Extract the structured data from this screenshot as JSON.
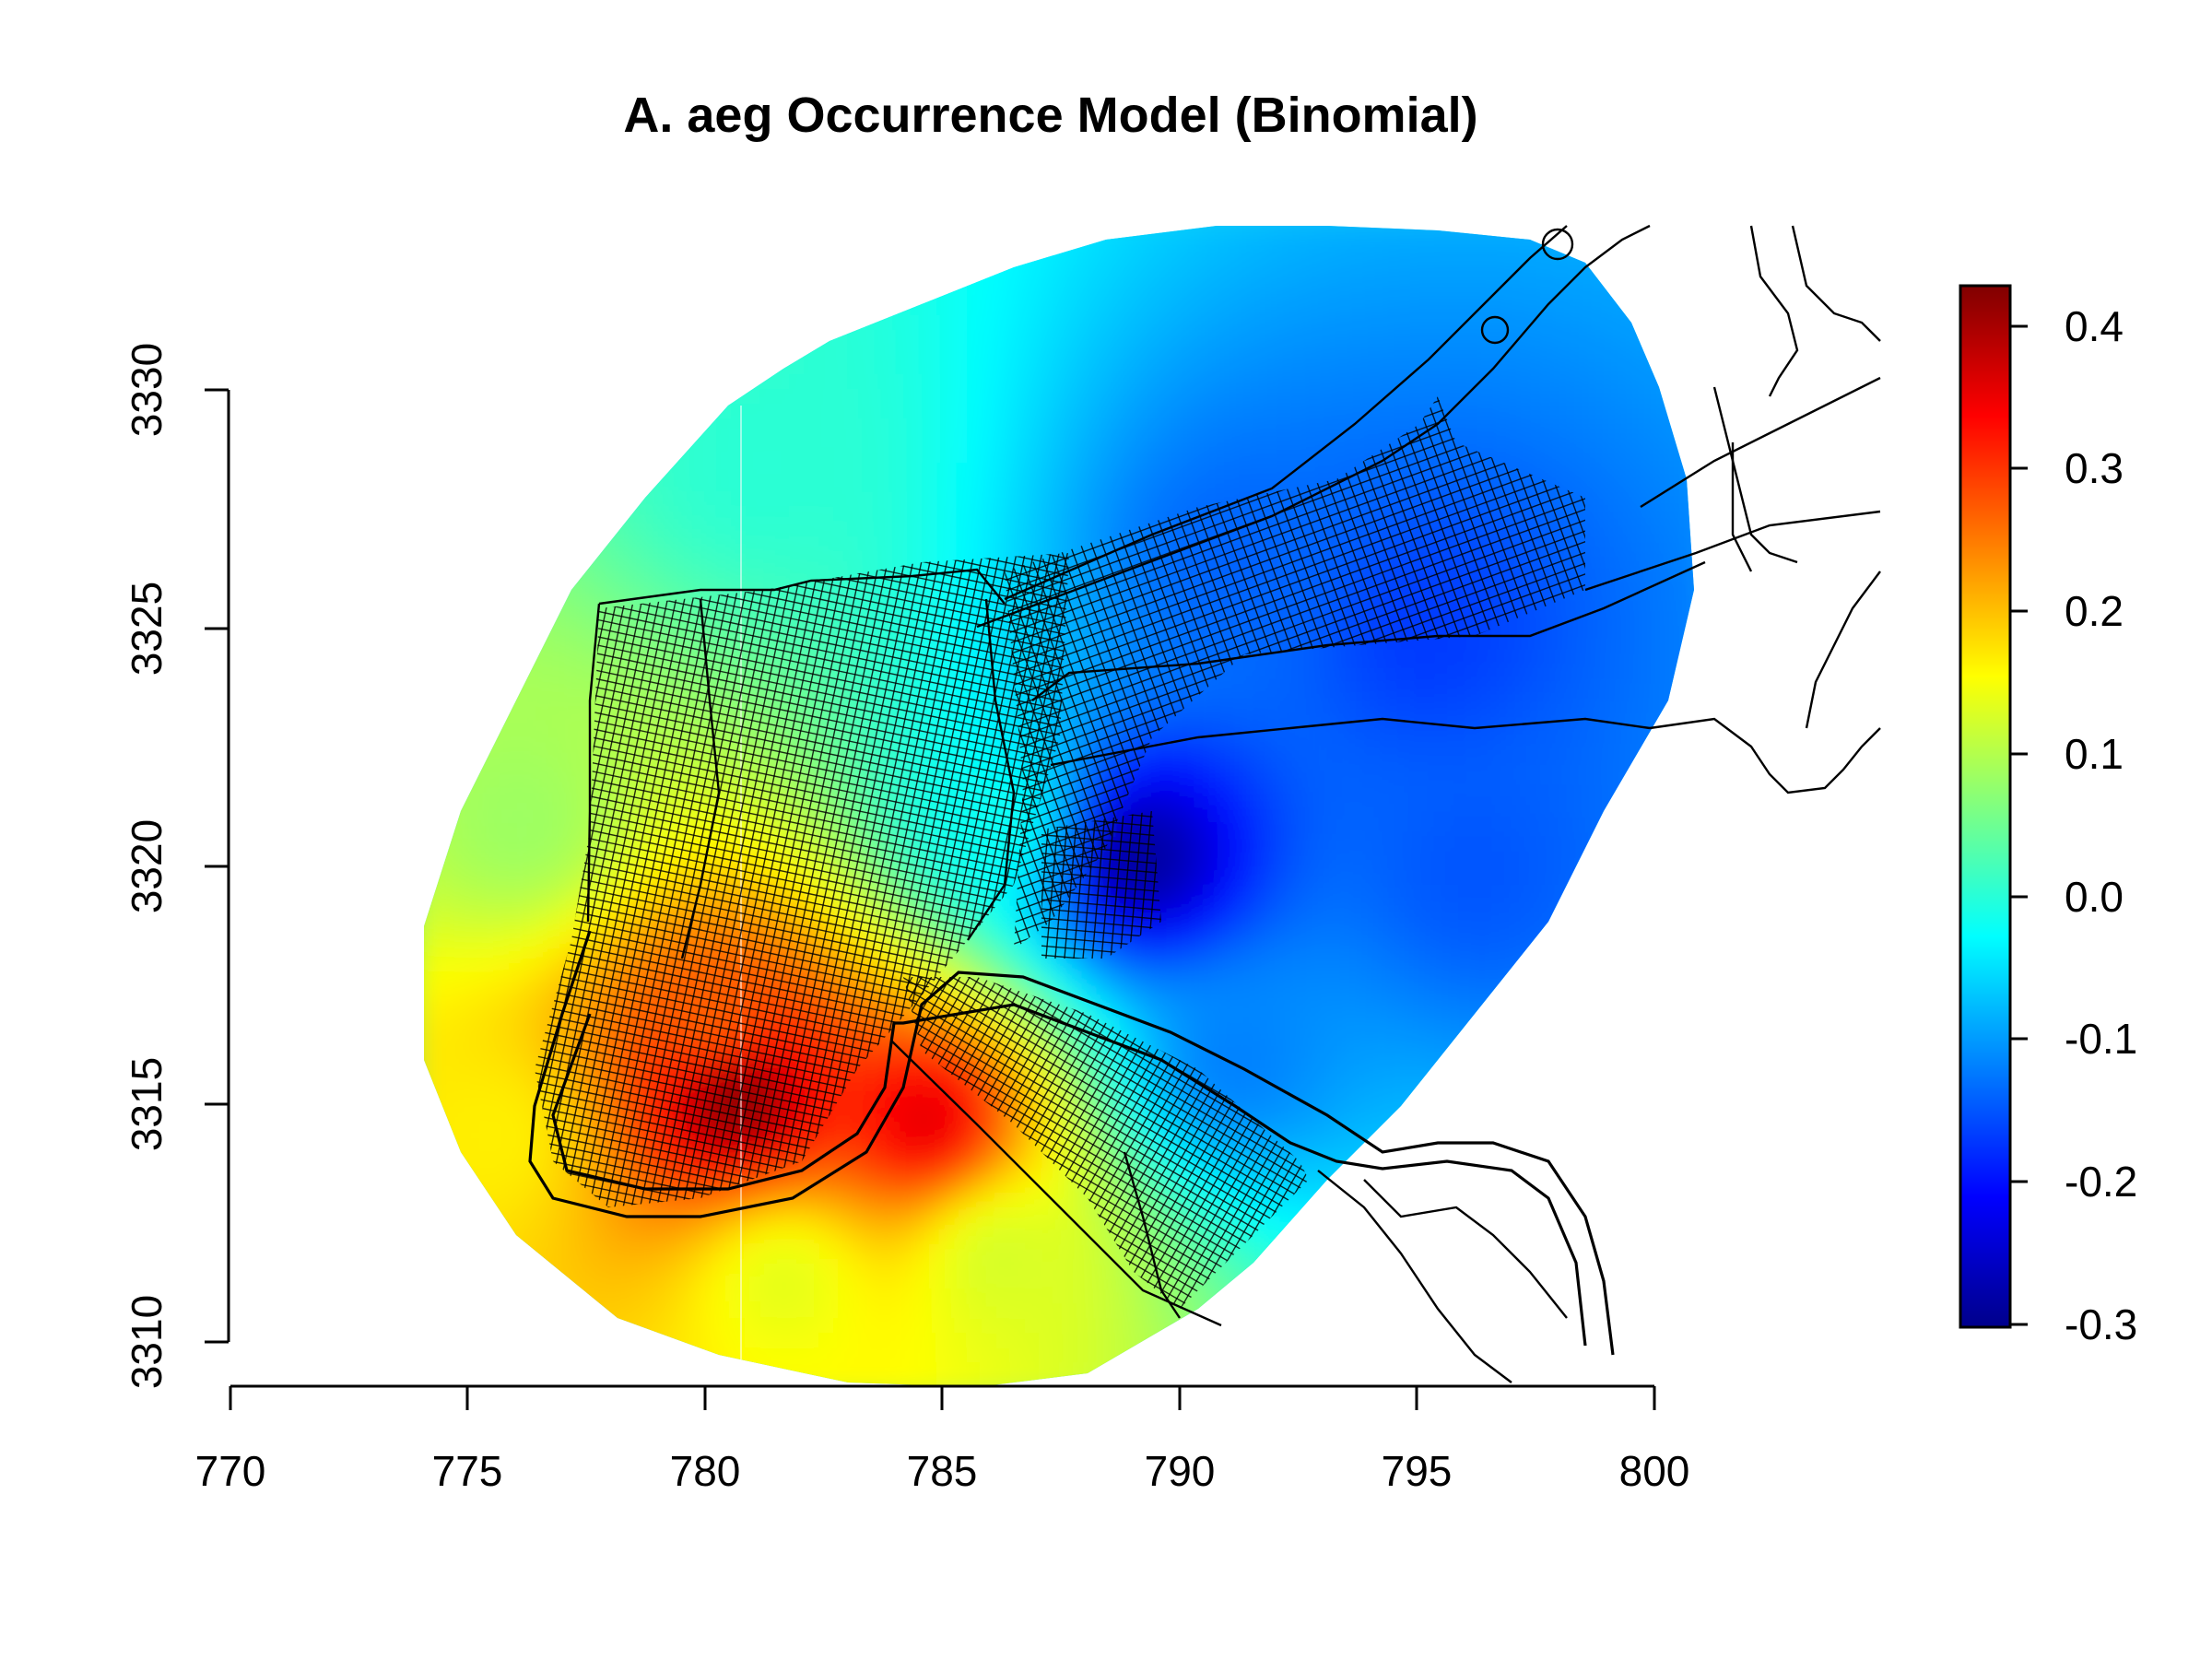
{
  "title": "A. aeg Occurrence Model (Binomial)",
  "x_axis": {
    "range": [
      770,
      800
    ],
    "ticks": [
      "770",
      "775",
      "780",
      "785",
      "790",
      "795",
      "800"
    ]
  },
  "y_axis": {
    "range": [
      3310,
      3330
    ],
    "ticks": [
      "3310",
      "3315",
      "3320",
      "3325",
      "3330"
    ]
  },
  "colorbar": {
    "range": [
      -0.3,
      0.42
    ],
    "ticks": [
      "0.4",
      "0.3",
      "0.2",
      "0.1",
      "0.0",
      "-0.1",
      "-0.2",
      "-0.3"
    ],
    "colors": [
      "#00008b",
      "#0000ff",
      "#0080ff",
      "#00ffff",
      "#80ff80",
      "#ffff00",
      "#ff8000",
      "#ff0000",
      "#800000"
    ]
  },
  "surface": {
    "hotspots": [
      {
        "x": 780.5,
        "y": 3315.3,
        "value": 0.42
      },
      {
        "x": 784.5,
        "y": 3314.8,
        "value": 0.35
      },
      {
        "x": 780.0,
        "y": 3316.8,
        "value": 0.26
      },
      {
        "x": 781.5,
        "y": 3311.5,
        "value": 0.13
      },
      {
        "x": 775.5,
        "y": 3314.5,
        "value": 0.16
      },
      {
        "x": 786.0,
        "y": 3312.0,
        "value": 0.12
      },
      {
        "x": 789.0,
        "y": 3320.3,
        "value": -0.29
      },
      {
        "x": 795.0,
        "y": 3325.0,
        "value": -0.17
      },
      {
        "x": 791.0,
        "y": 3326.5,
        "value": -0.14
      },
      {
        "x": 796.0,
        "y": 3320.0,
        "value": -0.15
      },
      {
        "x": 791.0,
        "y": 3316.0,
        "value": -0.12
      },
      {
        "x": 781.0,
        "y": 3328.5,
        "value": 0.0
      },
      {
        "x": 786.0,
        "y": 3321.0,
        "value": -0.02
      },
      {
        "x": 776.0,
        "y": 3321.0,
        "value": 0.08
      }
    ]
  }
}
